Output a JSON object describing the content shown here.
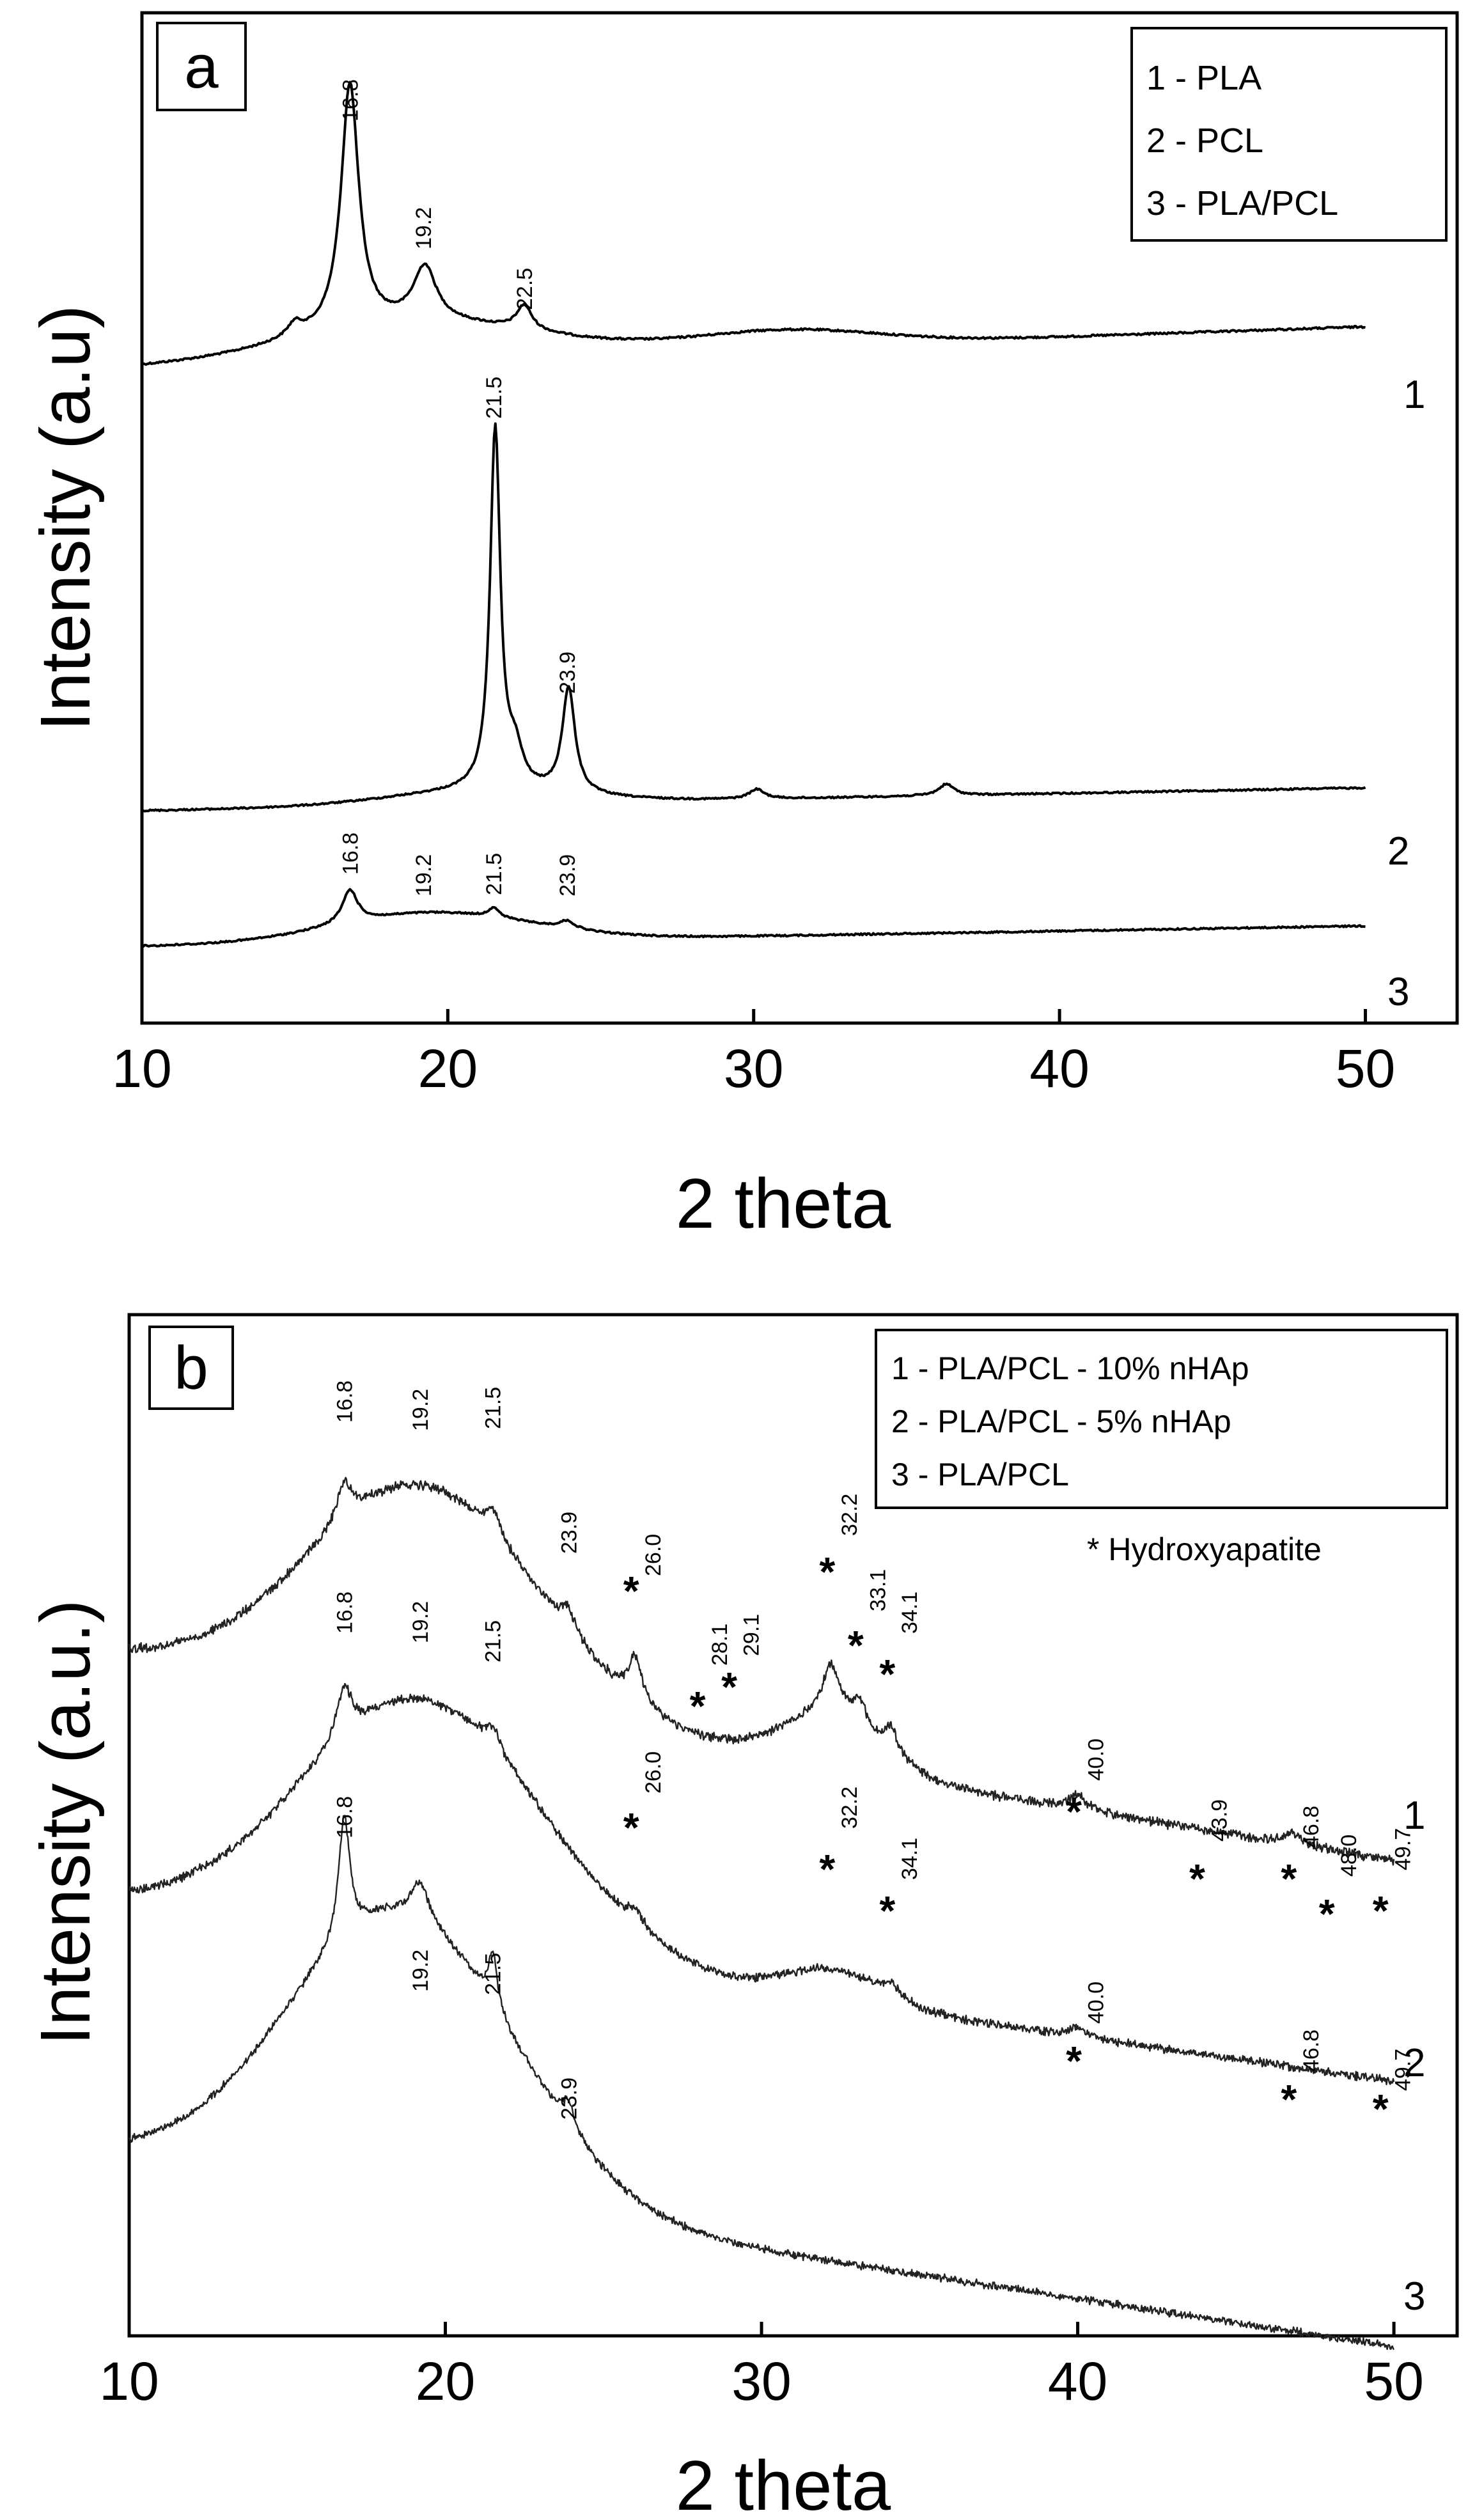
{
  "chart_data": [
    {
      "panel": "a",
      "type": "line",
      "xlabel": "2 theta",
      "ylabel": "Intensity (a.u)",
      "xlim": [
        10,
        53
      ],
      "xticks": [
        10,
        20,
        30,
        40,
        50
      ],
      "legend": [
        "1 - PLA",
        "2 - PCL",
        "3 - PLA/PCL"
      ],
      "series": [
        {
          "name": "1",
          "peaks": [
            {
              "x": 16.8,
              "label": "16.8"
            },
            {
              "x": 19.2,
              "label": "19.2"
            },
            {
              "x": 22.5,
              "label": "22.5"
            }
          ]
        },
        {
          "name": "2",
          "peaks": [
            {
              "x": 21.5,
              "label": "21.5"
            },
            {
              "x": 23.9,
              "label": "23.9"
            }
          ]
        },
        {
          "name": "3",
          "peaks": [
            {
              "x": 16.8,
              "label": "16.8"
            },
            {
              "x": 19.2,
              "label": "19.2"
            },
            {
              "x": 21.5,
              "label": "21.5"
            },
            {
              "x": 23.9,
              "label": "23.9"
            }
          ]
        }
      ]
    },
    {
      "panel": "b",
      "type": "line",
      "xlabel": "2 theta",
      "ylabel": "Intensity (a.u.)",
      "xlim": [
        10,
        52
      ],
      "xticks": [
        10,
        20,
        30,
        40,
        50
      ],
      "legend": [
        "1 - PLA/PCL - 10% nHAp",
        "2 - PLA/PCL - 5% nHAp",
        "3 - PLA/PCL"
      ],
      "note": "* Hydroxyapatite",
      "series": [
        {
          "name": "1",
          "peaks": [
            {
              "x": 16.8,
              "label": "16.8",
              "ha": false
            },
            {
              "x": 19.2,
              "label": "19.2",
              "ha": false
            },
            {
              "x": 21.5,
              "label": "21.5",
              "ha": false
            },
            {
              "x": 23.9,
              "label": "23.9",
              "ha": false
            },
            {
              "x": 26.0,
              "label": "26.0",
              "ha": true
            },
            {
              "x": 28.1,
              "label": "28.1",
              "ha": true
            },
            {
              "x": 29.1,
              "label": "29.1",
              "ha": true
            },
            {
              "x": 32.2,
              "label": "32.2",
              "ha": true
            },
            {
              "x": 33.1,
              "label": "33.1",
              "ha": true
            },
            {
              "x": 34.1,
              "label": "34.1",
              "ha": true
            },
            {
              "x": 40.0,
              "label": "40.0",
              "ha": true
            },
            {
              "x": 43.9,
              "label": "43.9",
              "ha": true
            },
            {
              "x": 46.8,
              "label": "46.8",
              "ha": true
            },
            {
              "x": 48.0,
              "label": "48.0",
              "ha": true
            },
            {
              "x": 49.7,
              "label": "49.7",
              "ha": true
            }
          ]
        },
        {
          "name": "2",
          "peaks": [
            {
              "x": 16.8,
              "label": "16.8",
              "ha": false
            },
            {
              "x": 19.2,
              "label": "19.2",
              "ha": false
            },
            {
              "x": 21.5,
              "label": "21.5",
              "ha": false
            },
            {
              "x": 26.0,
              "label": "26.0",
              "ha": true
            },
            {
              "x": 32.2,
              "label": "32.2",
              "ha": true
            },
            {
              "x": 34.1,
              "label": "34.1",
              "ha": true
            },
            {
              "x": 40.0,
              "label": "40.0",
              "ha": true
            },
            {
              "x": 46.8,
              "label": "46.8",
              "ha": true
            },
            {
              "x": 49.7,
              "label": "49.7",
              "ha": true
            }
          ]
        },
        {
          "name": "3",
          "peaks": [
            {
              "x": 16.8,
              "label": "16.8",
              "ha": false
            },
            {
              "x": 19.2,
              "label": "19.2",
              "ha": false
            },
            {
              "x": 21.5,
              "label": "21.5",
              "ha": false
            },
            {
              "x": 23.9,
              "label": "23.9",
              "ha": false
            }
          ]
        }
      ]
    }
  ]
}
